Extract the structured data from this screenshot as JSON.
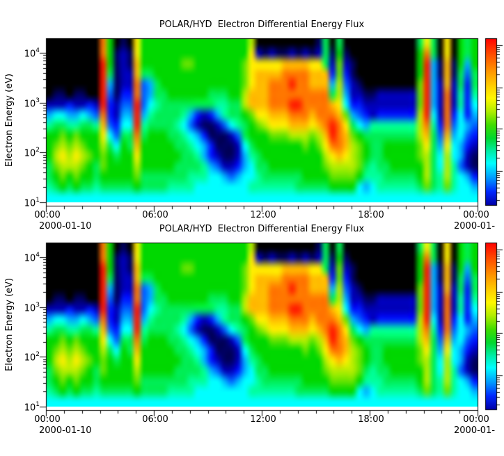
{
  "chart_data": {
    "type": "heatmap",
    "title": "POLAR/HYD  Electron Differential Energy Flux",
    "ylabel": "Electron Energy (eV)",
    "y_scale": "log",
    "y_tick_base": "10",
    "y_tick_exponents": [
      "4",
      "3",
      "2",
      "1"
    ],
    "y_range_ev": [
      10,
      19500
    ],
    "x_tick_labels": [
      "00:00",
      "06:00",
      "12:00",
      "18:00",
      "00:00"
    ],
    "x_minor_tick_interval_hours": 1,
    "x_range_hours": [
      0,
      24
    ],
    "start_date": "2000-01-10",
    "end_date": "2000-01-",
    "panels": [
      "top",
      "bottom"
    ],
    "panels_note": "two identical spectrogram panels of the same data",
    "legend_position": "right-colorbar",
    "grid_lines": "off",
    "colormap": [
      "#000000",
      "#000060",
      "#0000b8",
      "#0018ff",
      "#0060ff",
      "#00b0ff",
      "#00ffff",
      "#00ff9c",
      "#00ee55",
      "#00d800",
      "#66e400",
      "#b4ee00",
      "#ffee00",
      "#ffbb00",
      "#ff7700",
      "#ff1c00"
    ],
    "colorbar_gradient": [
      {
        "at": 0.0,
        "color": "#ff0000"
      },
      {
        "at": 0.1,
        "color": "#ff5000"
      },
      {
        "at": 0.2,
        "color": "#ff9800"
      },
      {
        "at": 0.3,
        "color": "#ffd800"
      },
      {
        "at": 0.36,
        "color": "#fff800"
      },
      {
        "at": 0.44,
        "color": "#b0ee00"
      },
      {
        "at": 0.52,
        "color": "#40dd00"
      },
      {
        "at": 0.6,
        "color": "#00d830"
      },
      {
        "at": 0.68,
        "color": "#00eeaa"
      },
      {
        "at": 0.75,
        "color": "#00ffff"
      },
      {
        "at": 0.84,
        "color": "#0098ff"
      },
      {
        "at": 0.92,
        "color": "#0028ff"
      },
      {
        "at": 1.0,
        "color": "#0000a8"
      }
    ],
    "flux_grid": {
      "description": "coarse flux map, 64 time columns (22.5 min each, 00:00-24:00) x 16 log-energy rows (top ~19.5 keV to bottom ~10 eV); hex digit 0-f indexes colormap (0=no flux/black, f=max/red)",
      "cols": 64,
      "rows": 16,
      "values_top_to_bottom": [
        "00000000 e9010c99 99999999999999 b0000000001 8080000 0000000 8c80c0989",
        "00000000 e9121c99 99999999999999 c2121121212 8191000 0000000 9e80c0989",
        "00000000 f9121d99 9999aa9999999a cccccddddcc 82a2100 0000000 9f51d1959",
        "00000000 f8122d88 9999999999999a cddddeeeedd d3a3100 0000000 9f51d1848",
        "00000000 f5122e45 8999999999999a cddeeefeedd d5b4210 0000000 af52d2838",
        "01101100 f4133e45 8899999988899b dddeeeeeeee e8b5221 1222222 af52e2737",
        "22232232 f3244f46 7888888887788b dddeeeffeee edc6332 2222222 af52e2736",
        "56655654 e3255f57 88887532357889 accdddeeede eeda543 2333333 bf62e3635",
        "78877887 d4366f78 88876421124678 9abcccdddcd efec865 7777777 be73e4654",
        "99a9a999 c6488e89 99887653111248 999aaabbbab dfeda98 8888888 bd84d5643",
        "9ababa99 b8698d99 99988765311126 89999999a9a ceedba9 8899999 ac85c6532",
        "9bcbcba9 a9899c99 99998875321125 78999999999 bcdcba9 8899999 ab86b6521",
        "8abbba98 a9999b99 99988887542235 68899999999 abbbba8 7889999 9b86b7421",
        "89a9a998 99999a88 88888777665456 67888888999 9aaaa97 7788888 9b87b7653",
        "78989887 88888988 88777766666666 77777778888 8999965 6777777 8a87a7665",
        "66666666 66666666 66666666666666 66666666666 6666666 6666666 666666666"
      ]
    }
  }
}
